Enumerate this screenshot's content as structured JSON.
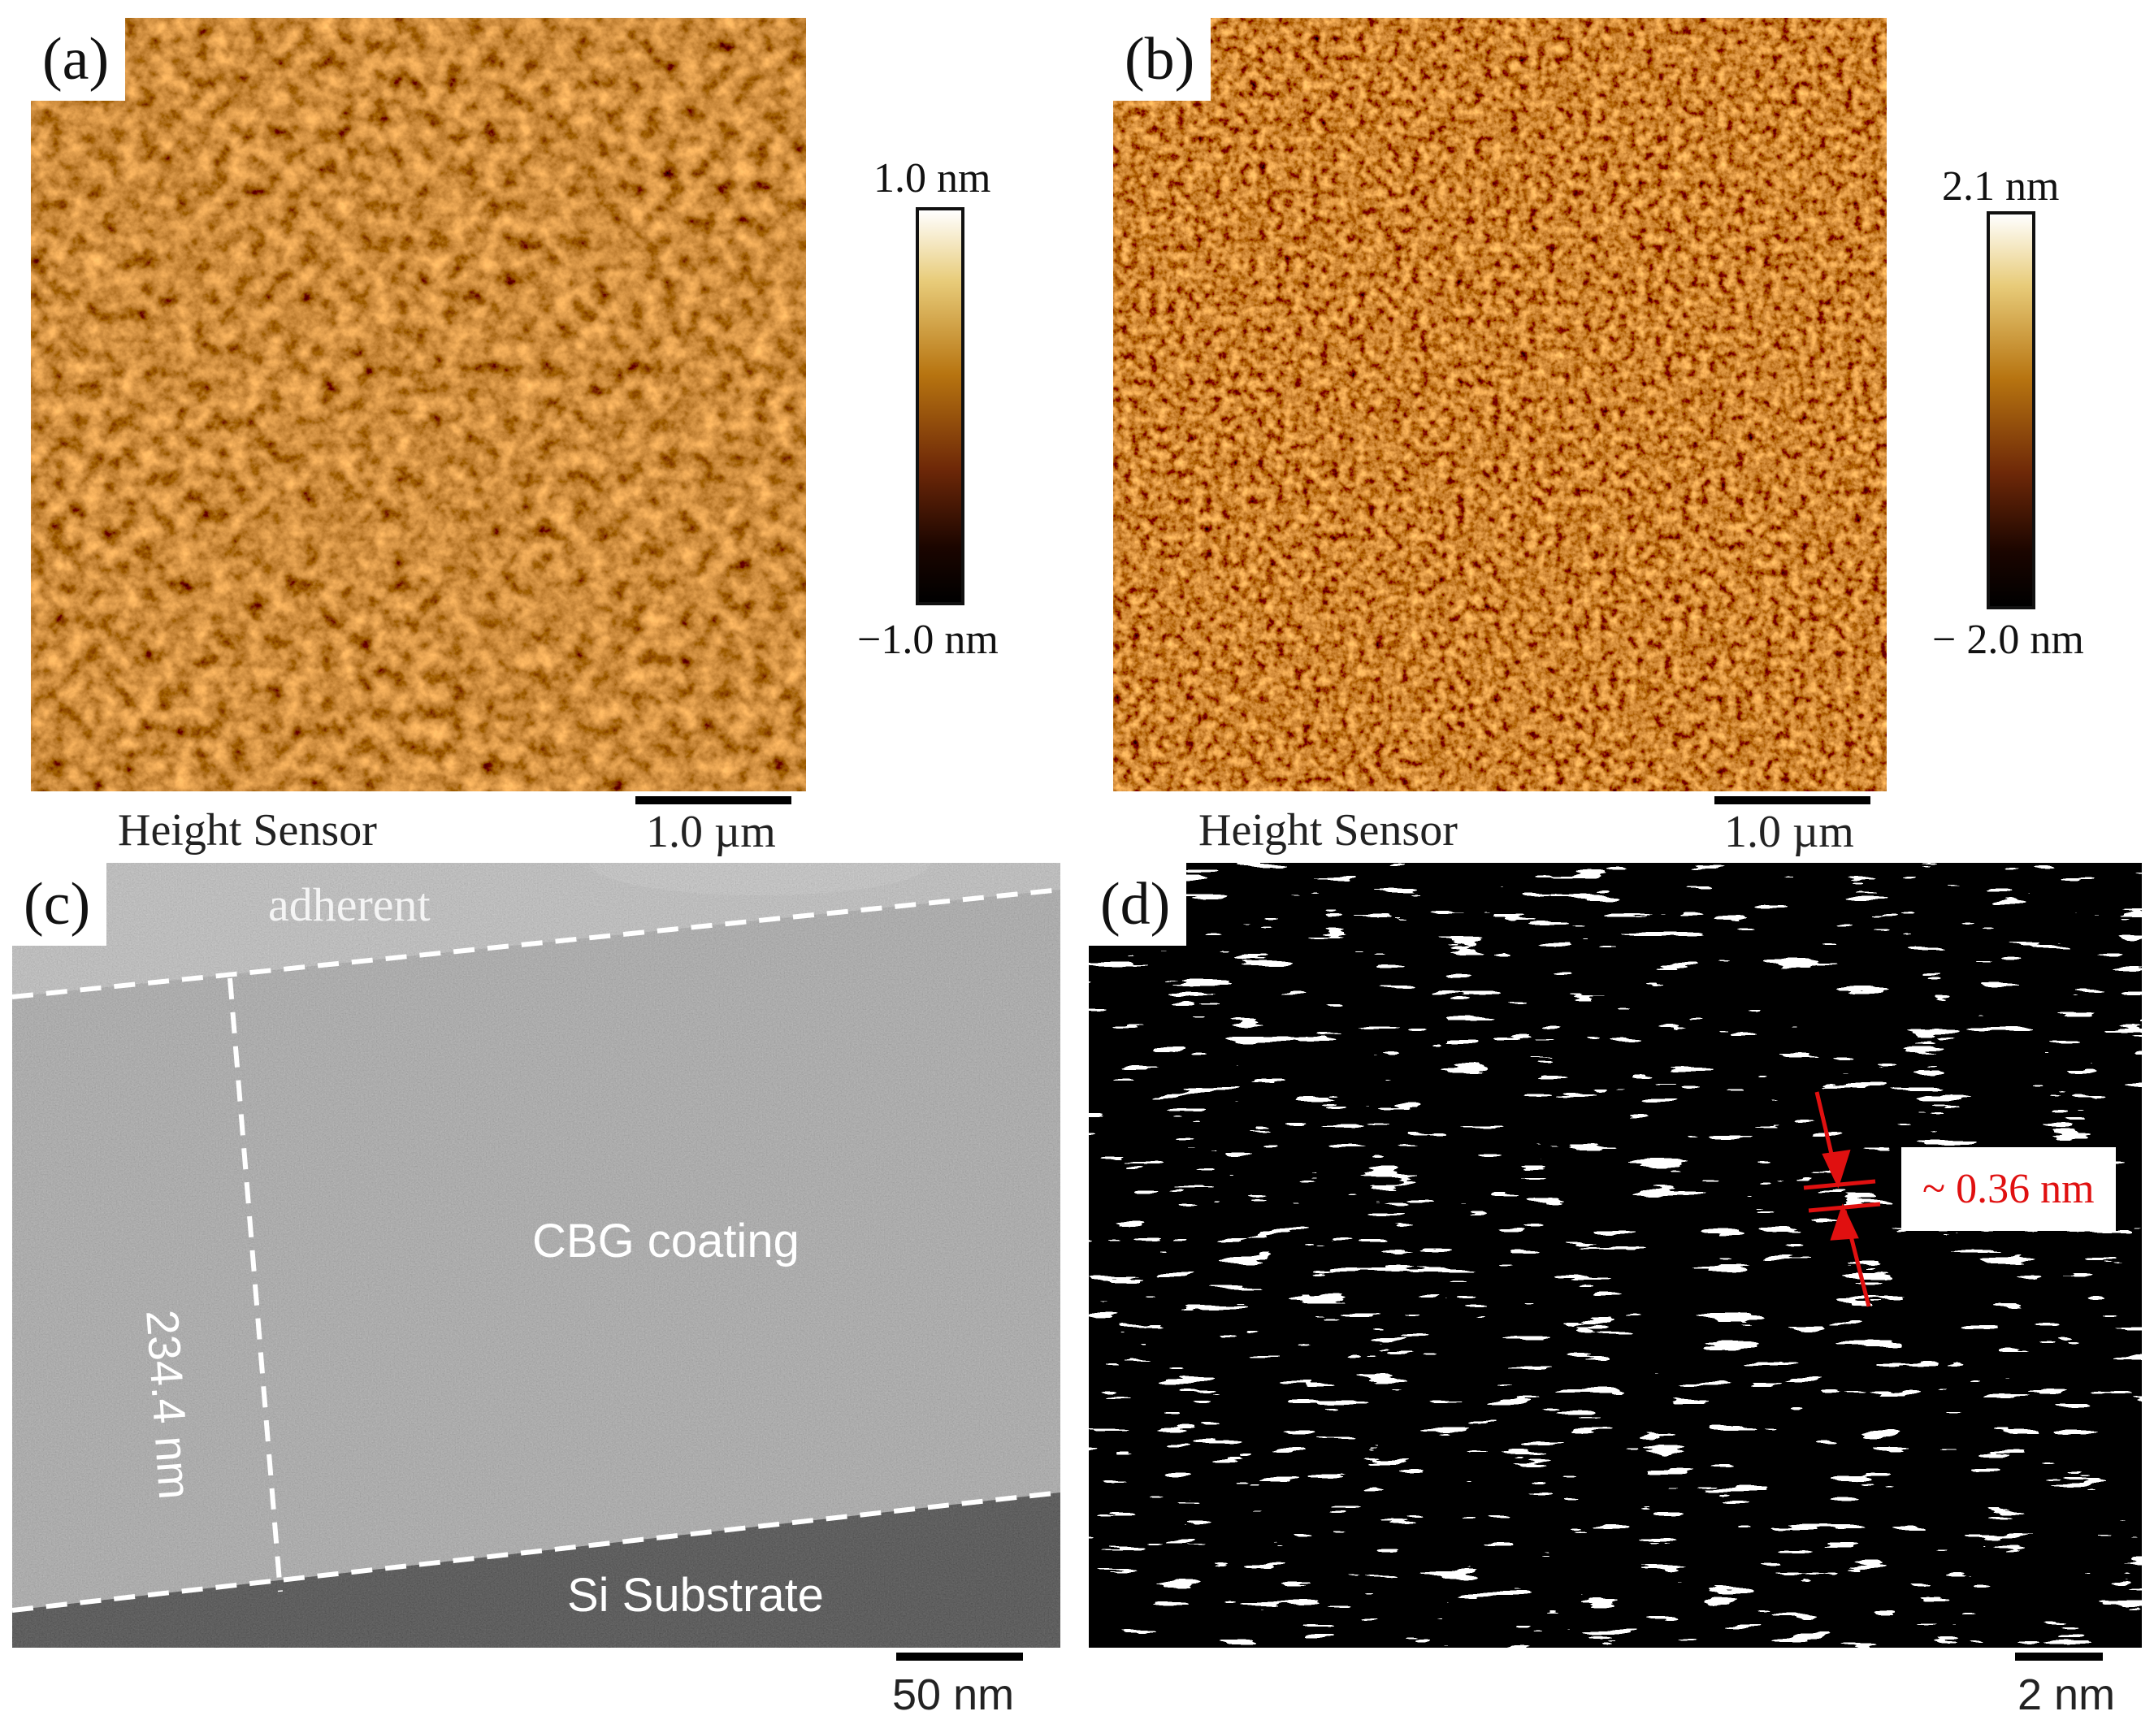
{
  "panels": {
    "a": {
      "label": "(a)",
      "caption": "Height Sensor",
      "scale_bar": "1.0 µm",
      "colorbar": {
        "max": "1.0 nm",
        "min": "−1.0 nm"
      }
    },
    "b": {
      "label": "(b)",
      "caption": "Height Sensor",
      "scale_bar": "1.0 µm",
      "colorbar": {
        "max": "2.1 nm",
        "min": "− 2.0 nm"
      }
    },
    "c": {
      "label": "(c)",
      "scale_bar": "50 nm",
      "regions": {
        "top": "adherent",
        "middle": "CBG coating",
        "bottom": "Si Substrate"
      },
      "thickness": "234.4 nm"
    },
    "d": {
      "label": "(d)",
      "scale_bar": "2 nm",
      "spacing": "~ 0.36 nm"
    }
  },
  "colors": {
    "afm_dark": "#3a1204",
    "afm_mid": "#9a5a12",
    "afm_light": "#f5e6b0",
    "tem_gray": "#a8a8a8",
    "tem_substrate": "#2b2b2b",
    "annotation_red": "#e01010"
  }
}
